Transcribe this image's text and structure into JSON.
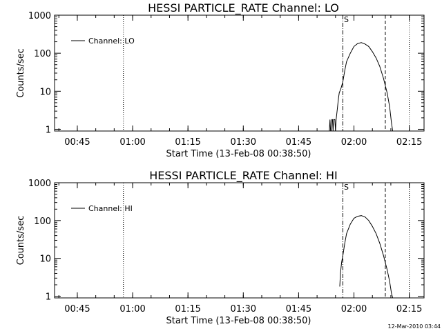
{
  "footer": {
    "timestamp": "12-Mar-2010 03:44"
  },
  "chart_data": [
    {
      "type": "line",
      "title": "HESSI PARTICLE_RATE Channel: LO",
      "xlabel": "Start Time (13-Feb-08 00:38:50)",
      "ylabel": "Counts/sec",
      "y_scale": "log",
      "ylim": [
        0.9,
        1000
      ],
      "xlim": [
        "00:38:50",
        "02:19:00"
      ],
      "x_ticks": [
        "00:45",
        "01:00",
        "01:15",
        "01:30",
        "01:45",
        "02:00",
        "02:15"
      ],
      "y_ticks": [
        "1",
        "10",
        "100",
        "1000"
      ],
      "legend": {
        "position": "top-left",
        "entries": [
          "Channel: LO"
        ]
      },
      "annotations": [
        {
          "text": "S",
          "time": "01:57:00",
          "style": "dash-dot"
        }
      ],
      "vlines": [
        {
          "time": "00:57:30",
          "style": "dotted"
        },
        {
          "time": "01:57:00",
          "style": "dash-dot"
        },
        {
          "time": "02:08:30",
          "style": "dashed"
        },
        {
          "time": "02:15:00",
          "style": "dotted"
        }
      ],
      "series": [
        {
          "name": "Channel: LO",
          "x": [
            "01:53:20",
            "01:53:30",
            "01:53:40",
            "01:53:50",
            "01:54:00",
            "01:54:10",
            "01:54:20",
            "01:54:30",
            "01:54:40",
            "01:54:50",
            "01:55:00",
            "01:55:10",
            "01:55:20",
            "01:55:30",
            "01:55:40",
            "01:55:50",
            "01:56:00",
            "01:56:30",
            "01:57:00",
            "01:57:30",
            "01:58:00",
            "01:59:00",
            "02:00:00",
            "02:01:00",
            "02:02:00",
            "02:03:00",
            "02:04:00",
            "02:05:00",
            "02:06:00",
            "02:07:00",
            "02:08:00",
            "02:09:00",
            "02:09:40",
            "02:10:10",
            "02:10:30"
          ],
          "y": [
            0.9,
            1.8,
            0.9,
            0.9,
            1.8,
            1.8,
            0.9,
            1.8,
            1.8,
            1.8,
            0.9,
            1.8,
            2.5,
            3.5,
            5,
            7,
            9,
            12,
            18,
            35,
            60,
            100,
            150,
            180,
            190,
            175,
            150,
            110,
            75,
            45,
            22,
            9,
            4,
            1.5,
            0.9
          ]
        }
      ]
    },
    {
      "type": "line",
      "title": "HESSI PARTICLE_RATE Channel: HI",
      "xlabel": "Start Time (13-Feb-08 00:38:50)",
      "ylabel": "Counts/sec",
      "y_scale": "log",
      "ylim": [
        0.9,
        1000
      ],
      "xlim": [
        "00:38:50",
        "02:19:00"
      ],
      "x_ticks": [
        "00:45",
        "01:00",
        "01:15",
        "01:30",
        "01:45",
        "02:00",
        "02:15"
      ],
      "y_ticks": [
        "1",
        "10",
        "100",
        "1000"
      ],
      "legend": {
        "position": "top-left",
        "entries": [
          "Channel: HI"
        ]
      },
      "annotations": [
        {
          "text": "S",
          "time": "01:57:00",
          "style": "dash-dot"
        }
      ],
      "vlines": [
        {
          "time": "00:57:30",
          "style": "dotted"
        },
        {
          "time": "01:57:00",
          "style": "dash-dot"
        },
        {
          "time": "02:08:30",
          "style": "dashed"
        },
        {
          "time": "02:15:00",
          "style": "dotted"
        }
      ],
      "series": [
        {
          "name": "Channel: HI",
          "x": [
            "01:56:10",
            "01:56:20",
            "01:56:40",
            "01:57:00",
            "01:57:30",
            "01:58:00",
            "01:59:00",
            "02:00:00",
            "02:01:00",
            "02:02:00",
            "02:03:00",
            "02:04:00",
            "02:05:00",
            "02:06:00",
            "02:07:00",
            "02:08:00",
            "02:09:00",
            "02:09:40",
            "02:10:10",
            "02:10:30"
          ],
          "y": [
            1.8,
            4,
            8,
            12,
            25,
            45,
            80,
            115,
            130,
            135,
            125,
            100,
            70,
            45,
            25,
            12,
            5,
            2.5,
            1.2,
            0.9
          ]
        }
      ]
    }
  ]
}
